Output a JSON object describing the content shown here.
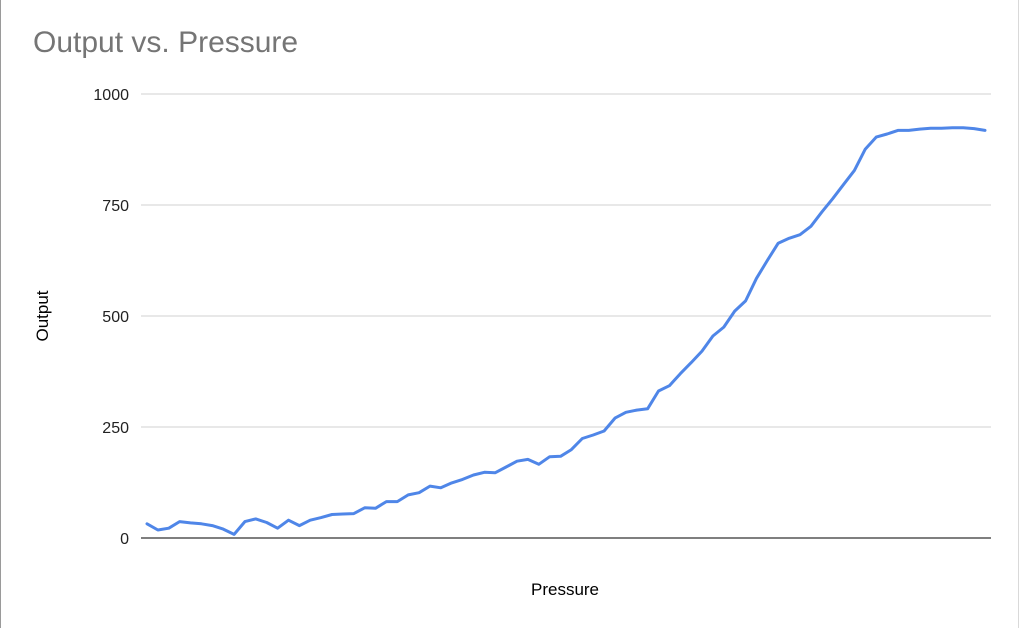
{
  "chart_data": {
    "type": "line",
    "title": "Output vs. Pressure",
    "xlabel": "Pressure",
    "ylabel": "Output",
    "ylim": [
      0,
      1000
    ],
    "yticks": [
      "0",
      "250",
      "500",
      "750",
      "1000"
    ],
    "grid": true,
    "legend": "none",
    "colors": {
      "line": "#4f86e8",
      "grid": "#d0d0d0",
      "baseline": "#333333",
      "title": "#757575"
    },
    "series": [
      {
        "values": [
          32,
          18,
          22,
          37,
          34,
          32,
          28,
          20,
          8,
          37,
          43,
          35,
          22,
          40,
          28,
          40,
          46,
          53,
          54,
          55,
          68,
          67,
          82,
          82,
          97,
          102,
          117,
          113,
          124,
          132,
          142,
          148,
          147,
          160,
          173,
          177,
          166,
          183,
          184,
          199,
          224,
          232,
          241,
          270,
          283,
          288,
          291,
          331,
          343,
          370,
          395,
          421,
          455,
          475,
          511,
          534,
          585,
          625,
          664,
          675,
          683,
          702,
          734,
          764,
          796,
          828,
          876,
          903,
          910,
          918,
          918,
          921,
          923,
          923,
          924,
          924,
          922,
          918
        ]
      }
    ]
  }
}
